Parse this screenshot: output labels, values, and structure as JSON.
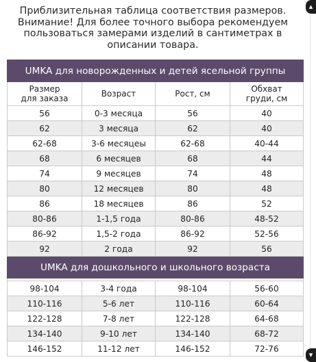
{
  "notice": [
    "Приблизительная таблица соответствия размеров.",
    "Внимание! Для более точного выбора рекомендуем",
    "пользоваться замерами изделий в сантиметрах в",
    "описании товара."
  ],
  "columns": [
    "Размер для заказа",
    "Возраст",
    "Рост, см",
    "Обхват груди, см"
  ],
  "columns_lines": [
    [
      "Размер",
      "для заказа"
    ],
    [
      "Возраст"
    ],
    [
      "Рост, см"
    ],
    [
      "Обхват",
      "груди, см"
    ]
  ],
  "section1": {
    "title": "UMKA для новорожденных и детей ясельной группы",
    "rows": [
      [
        "56",
        "0-3 месяца",
        "56",
        "40"
      ],
      [
        "62",
        "3 месяца",
        "62",
        "40"
      ],
      [
        "62-68",
        "3-6 месяцеы",
        "62-68",
        "40-44"
      ],
      [
        "68",
        "6 месяцев",
        "68",
        "44"
      ],
      [
        "74",
        "9 месяцев",
        "74",
        "48"
      ],
      [
        "80",
        "12 месяцев",
        "80",
        "48"
      ],
      [
        "86",
        "18 месяцев",
        "86",
        "52"
      ],
      [
        "80-86",
        "1-1,5 года",
        "80-86",
        "48-52"
      ],
      [
        "86-92",
        "1,5-2 года",
        "86-92",
        "52-56"
      ],
      [
        "92",
        "2 года",
        "92",
        "56"
      ]
    ]
  },
  "section2": {
    "title": "UMKA для дошкольного и школьного возраста",
    "rows": [
      [
        "98-104",
        "3-4 года",
        "98-104",
        "56-60"
      ],
      [
        "110-116",
        "5-6 лет",
        "110-116",
        "60-64"
      ],
      [
        "122-128",
        "7-8 лет",
        "122-128",
        "64-68"
      ],
      [
        "134-140",
        "9-10 лет",
        "134-140",
        "68-72"
      ],
      [
        "146-152",
        "11-12 лет",
        "146-152",
        "72-76"
      ]
    ]
  },
  "controls": {
    "top_icon": "scroll-up-icon",
    "bottom_icon": "scroll-down-icon"
  },
  "colors": {
    "band": "#5b4a6a",
    "shade": "#ececec",
    "border": "#c9c9c9"
  }
}
